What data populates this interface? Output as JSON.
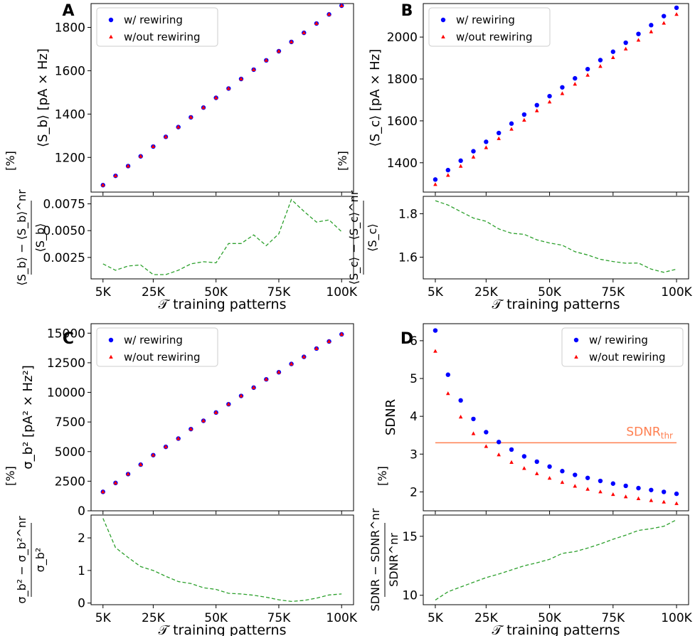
{
  "chart_data": [
    {
      "panel": "A-top",
      "panel_letter": "A",
      "type": "scatter",
      "ylabel": "⟨S_b⟩ [pA × Hz]",
      "xlim": [
        5000,
        100000
      ],
      "ylim": [
        1040,
        1910
      ],
      "yticks": [
        1200,
        1400,
        1600,
        1800
      ],
      "legend": {
        "placement": "top-left",
        "entries": [
          "w/ rewiring",
          "w/out rewiring"
        ]
      },
      "x": [
        5000,
        10000,
        15000,
        20000,
        25000,
        30000,
        35000,
        40000,
        45000,
        50000,
        55000,
        60000,
        65000,
        70000,
        75000,
        80000,
        85000,
        90000,
        95000,
        100000
      ],
      "series": [
        {
          "name": "w/ rewiring",
          "marker": "circle",
          "color": "#0000ff",
          "values": [
            1072,
            1115,
            1160,
            1205,
            1250,
            1295,
            1340,
            1385,
            1430,
            1475,
            1518,
            1562,
            1605,
            1648,
            1690,
            1733,
            1775,
            1818,
            1860,
            1900
          ]
        },
        {
          "name": "w/out rewiring",
          "marker": "triangle",
          "color": "#ff0000",
          "values": [
            1072,
            1115,
            1160,
            1205,
            1250,
            1295,
            1340,
            1385,
            1430,
            1475,
            1518,
            1562,
            1605,
            1648,
            1690,
            1733,
            1775,
            1818,
            1860,
            1900
          ]
        }
      ]
    },
    {
      "panel": "A-bottom",
      "type": "line",
      "ylabel_parts": {
        "top": "⟨S_b⟩ − ⟨S_b⟩^nr",
        "bottom": "⟨S_b⟩",
        "unit": "[%]"
      },
      "xlabel": "𝒯 training patterns",
      "xlim": [
        5000,
        100000
      ],
      "xticks": [
        "5K",
        "25K",
        "50K",
        "75K",
        "100K"
      ],
      "ylim": [
        0.0005,
        0.0082
      ],
      "yticks": [
        "0.0025",
        "0.0050",
        "0.0075"
      ],
      "x": [
        5000,
        10000,
        15000,
        20000,
        25000,
        30000,
        35000,
        40000,
        45000,
        50000,
        55000,
        60000,
        65000,
        70000,
        75000,
        80000,
        85000,
        90000,
        95000,
        100000
      ],
      "series": [
        {
          "name": "",
          "color": "#2ca02c",
          "style": "dashed",
          "values": [
            0.0019,
            0.0013,
            0.0017,
            0.0018,
            0.0009,
            0.0009,
            0.0013,
            0.0019,
            0.0021,
            0.002,
            0.0038,
            0.0038,
            0.0046,
            0.0036,
            0.0047,
            0.0079,
            0.0068,
            0.0058,
            0.006,
            0.0049
          ]
        }
      ]
    },
    {
      "panel": "B-top",
      "panel_letter": "B",
      "type": "scatter",
      "ylabel": "⟨S_c⟩ [pA × Hz]",
      "xlim": [
        5000,
        100000
      ],
      "ylim": [
        1260,
        2160
      ],
      "yticks": [
        1400,
        1600,
        1800,
        2000
      ],
      "legend": {
        "placement": "top-left",
        "entries": [
          "w/ rewiring",
          "w/out rewiring"
        ]
      },
      "x": [
        5000,
        10000,
        15000,
        20000,
        25000,
        30000,
        35000,
        40000,
        45000,
        50000,
        55000,
        60000,
        65000,
        70000,
        75000,
        80000,
        85000,
        90000,
        95000,
        100000
      ],
      "series": [
        {
          "name": "w/ rewiring",
          "marker": "circle",
          "color": "#0000ff",
          "values": [
            1320,
            1365,
            1410,
            1455,
            1500,
            1542,
            1587,
            1630,
            1675,
            1718,
            1760,
            1803,
            1847,
            1890,
            1930,
            1973,
            2015,
            2057,
            2100,
            2140
          ]
        },
        {
          "name": "w/out rewiring",
          "marker": "triangle",
          "color": "#ff0000",
          "values": [
            1296,
            1340,
            1383,
            1427,
            1472,
            1515,
            1560,
            1603,
            1648,
            1690,
            1730,
            1775,
            1818,
            1860,
            1902,
            1943,
            1985,
            2025,
            2066,
            2108
          ]
        }
      ]
    },
    {
      "panel": "B-bottom",
      "type": "line",
      "ylabel_parts": {
        "top": "⟨S_c⟩ − ⟨S_c⟩^nr",
        "bottom": "⟨S_c⟩",
        "unit": "[%]"
      },
      "xlabel": "𝒯 training patterns",
      "xlim": [
        5000,
        100000
      ],
      "xticks": [
        "5K",
        "25K",
        "50K",
        "75K",
        "100K"
      ],
      "ylim": [
        1.5,
        1.88
      ],
      "yticks": [
        "1.6",
        "1.8"
      ],
      "x": [
        5000,
        10000,
        15000,
        20000,
        25000,
        30000,
        35000,
        40000,
        45000,
        50000,
        55000,
        60000,
        65000,
        70000,
        75000,
        80000,
        85000,
        90000,
        95000,
        100000
      ],
      "series": [
        {
          "name": "",
          "color": "#2ca02c",
          "style": "dashed",
          "values": [
            1.86,
            1.84,
            1.81,
            1.78,
            1.765,
            1.73,
            1.71,
            1.705,
            1.68,
            1.665,
            1.655,
            1.625,
            1.61,
            1.59,
            1.58,
            1.572,
            1.573,
            1.545,
            1.53,
            1.545
          ]
        }
      ]
    },
    {
      "panel": "C-top",
      "panel_letter": "C",
      "type": "scatter",
      "ylabel": "σ_b² [pA² × Hz²]",
      "xlim": [
        5000,
        100000
      ],
      "ylim": [
        0,
        15800
      ],
      "yticks": [
        0,
        2500,
        5000,
        7500,
        10000,
        12500,
        15000
      ],
      "legend": {
        "placement": "top-left",
        "entries": [
          "w/ rewiring",
          "w/out rewiring"
        ]
      },
      "x": [
        5000,
        10000,
        15000,
        20000,
        25000,
        30000,
        35000,
        40000,
        45000,
        50000,
        55000,
        60000,
        65000,
        70000,
        75000,
        80000,
        85000,
        90000,
        95000,
        100000
      ],
      "series": [
        {
          "name": "w/ rewiring",
          "marker": "circle",
          "color": "#0000ff",
          "values": [
            1600,
            2350,
            3100,
            3900,
            4700,
            5400,
            6100,
            6900,
            7600,
            8300,
            9000,
            9700,
            10400,
            11100,
            11700,
            12400,
            13000,
            13700,
            14300,
            14900
          ]
        },
        {
          "name": "w/out rewiring",
          "marker": "triangle",
          "color": "#ff0000",
          "values": [
            1600,
            2350,
            3100,
            3900,
            4700,
            5400,
            6100,
            6900,
            7600,
            8300,
            9000,
            9700,
            10400,
            11100,
            11700,
            12400,
            13000,
            13700,
            14300,
            14900
          ]
        }
      ]
    },
    {
      "panel": "C-bottom",
      "type": "line",
      "ylabel_parts": {
        "top": "σ_b² − σ_b²^nr",
        "bottom": "σ_b²",
        "unit": "[%]"
      },
      "xlabel": "𝒯 training patterns",
      "xlim": [
        5000,
        100000
      ],
      "xticks": [
        "5K",
        "25K",
        "50K",
        "75K",
        "100K"
      ],
      "ylim": [
        -0.05,
        2.7
      ],
      "yticks": [
        "0",
        "1",
        "2"
      ],
      "x": [
        5000,
        10000,
        15000,
        20000,
        25000,
        30000,
        35000,
        40000,
        45000,
        50000,
        55000,
        60000,
        65000,
        70000,
        75000,
        80000,
        85000,
        90000,
        95000,
        100000
      ],
      "series": [
        {
          "name": "",
          "color": "#2ca02c",
          "style": "dashed",
          "values": [
            2.6,
            1.7,
            1.4,
            1.12,
            1.0,
            0.82,
            0.66,
            0.6,
            0.47,
            0.42,
            0.3,
            0.28,
            0.24,
            0.18,
            0.1,
            0.05,
            0.08,
            0.15,
            0.25,
            0.28
          ]
        }
      ]
    },
    {
      "panel": "D-top",
      "panel_letter": "D",
      "type": "scatter",
      "ylabel": "SDNR",
      "xlim": [
        5000,
        100000
      ],
      "ylim": [
        1.5,
        6.45
      ],
      "yticks": [
        2,
        3,
        4,
        5,
        6
      ],
      "legend": {
        "placement": "top-right",
        "entries": [
          "w/ rewiring",
          "w/out rewiring"
        ]
      },
      "threshold": {
        "label": "SDNR",
        "subscript": "thr",
        "value": 3.3,
        "color": "#ff7f50"
      },
      "x": [
        5000,
        10000,
        15000,
        20000,
        25000,
        30000,
        35000,
        40000,
        45000,
        50000,
        55000,
        60000,
        65000,
        70000,
        75000,
        80000,
        85000,
        90000,
        95000,
        100000
      ],
      "series": [
        {
          "name": "w/ rewiring",
          "marker": "circle",
          "color": "#0000ff",
          "values": [
            6.27,
            5.1,
            4.42,
            3.93,
            3.58,
            3.32,
            3.12,
            2.94,
            2.8,
            2.67,
            2.55,
            2.45,
            2.37,
            2.29,
            2.22,
            2.16,
            2.1,
            2.05,
            2.0,
            1.95
          ]
        },
        {
          "name": "w/out rewiring",
          "marker": "triangle",
          "color": "#ff0000",
          "values": [
            5.72,
            4.6,
            3.98,
            3.54,
            3.2,
            2.98,
            2.78,
            2.62,
            2.48,
            2.36,
            2.25,
            2.15,
            2.07,
            2.0,
            1.93,
            1.87,
            1.82,
            1.77,
            1.73,
            1.69
          ]
        }
      ]
    },
    {
      "panel": "D-bottom",
      "type": "line",
      "ylabel_parts": {
        "top": "SDNR − SDNR^nr",
        "bottom": "SDNR^nr",
        "unit": "[%]"
      },
      "xlabel": "𝒯 training patterns",
      "xlim": [
        5000,
        100000
      ],
      "xticks": [
        "5K",
        "25K",
        "50K",
        "75K",
        "100K"
      ],
      "ylim": [
        9.2,
        16.8
      ],
      "yticks": [
        "10",
        "15"
      ],
      "x": [
        5000,
        10000,
        15000,
        20000,
        25000,
        30000,
        35000,
        40000,
        45000,
        50000,
        55000,
        60000,
        65000,
        70000,
        75000,
        80000,
        85000,
        90000,
        95000,
        100000
      ],
      "series": [
        {
          "name": "",
          "color": "#2ca02c",
          "style": "dashed",
          "values": [
            9.6,
            10.3,
            10.7,
            11.1,
            11.5,
            11.8,
            12.15,
            12.5,
            12.75,
            13.05,
            13.55,
            13.7,
            14.0,
            14.35,
            14.75,
            15.1,
            15.5,
            15.65,
            15.85,
            16.4
          ]
        }
      ]
    }
  ]
}
